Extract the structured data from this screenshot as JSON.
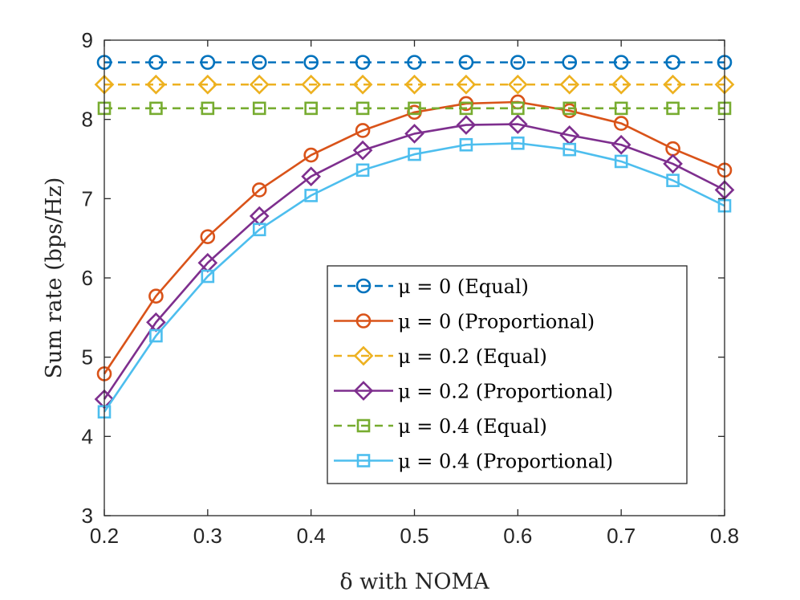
{
  "chart_data": {
    "type": "line",
    "title": "",
    "xlabel": "δ with NOMA",
    "ylabel": "Sum rate (bps/Hz)",
    "xlim": [
      0.2,
      0.8
    ],
    "ylim": [
      3,
      9
    ],
    "x_ticks": [
      "0.2",
      "0.3",
      "0.4",
      "0.5",
      "0.6",
      "0.7",
      "0.8"
    ],
    "y_ticks": [
      "3",
      "4",
      "5",
      "6",
      "7",
      "8",
      "9"
    ],
    "grid": false,
    "legend_position": "lower-right",
    "x": [
      0.2,
      0.25,
      0.3,
      0.35,
      0.4,
      0.45,
      0.5,
      0.55,
      0.6,
      0.65,
      0.7,
      0.75,
      0.8
    ],
    "series": [
      {
        "name": "μ = 0 (Equal)",
        "color": "#0072BD",
        "dashed": true,
        "marker": "circle-bar",
        "values": [
          8.72,
          8.72,
          8.72,
          8.72,
          8.72,
          8.72,
          8.72,
          8.72,
          8.72,
          8.72,
          8.72,
          8.72,
          8.72
        ]
      },
      {
        "name": "μ = 0 (Proportional)",
        "color": "#D95319",
        "dashed": false,
        "marker": "circle",
        "values": [
          4.79,
          5.77,
          6.52,
          7.11,
          7.55,
          7.86,
          8.09,
          8.2,
          8.22,
          8.11,
          7.95,
          7.63,
          7.36
        ]
      },
      {
        "name": "μ = 0.2 (Equal)",
        "color": "#EDB120",
        "dashed": true,
        "marker": "diamond-bar",
        "values": [
          8.44,
          8.44,
          8.44,
          8.44,
          8.44,
          8.44,
          8.44,
          8.44,
          8.44,
          8.44,
          8.44,
          8.44,
          8.44
        ]
      },
      {
        "name": "μ = 0.2 (Proportional)",
        "color": "#7E2F8E",
        "dashed": false,
        "marker": "diamond",
        "values": [
          4.47,
          5.44,
          6.19,
          6.78,
          7.28,
          7.61,
          7.82,
          7.93,
          7.94,
          7.8,
          7.68,
          7.44,
          7.11
        ]
      },
      {
        "name": "μ = 0.4 (Equal)",
        "color": "#77AC30",
        "dashed": true,
        "marker": "square-bar",
        "values": [
          8.14,
          8.14,
          8.14,
          8.14,
          8.14,
          8.14,
          8.14,
          8.14,
          8.14,
          8.14,
          8.14,
          8.14,
          8.14
        ]
      },
      {
        "name": "μ = 0.4 (Proportional)",
        "color": "#4DBEEE",
        "dashed": false,
        "marker": "square",
        "values": [
          4.31,
          5.27,
          6.02,
          6.61,
          7.04,
          7.36,
          7.56,
          7.68,
          7.7,
          7.62,
          7.47,
          7.23,
          6.91
        ]
      }
    ]
  }
}
